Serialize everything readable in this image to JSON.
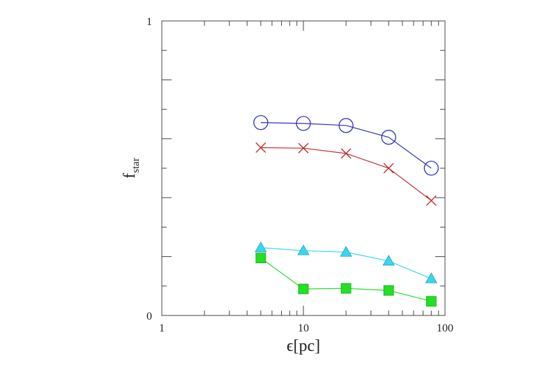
{
  "chart_data": {
    "type": "line",
    "xscale": "log",
    "xlim": [
      1,
      100
    ],
    "ylim": [
      0,
      1
    ],
    "xlabel": "ϵ[pc]",
    "ylabel": {
      "main": "f",
      "subscript": "star"
    },
    "x_tick_labels": [
      "1",
      "10",
      "100"
    ],
    "y_tick_labels": [
      "0",
      "1"
    ],
    "y_minor_ticks": [
      0.1,
      0.2,
      0.3,
      0.4,
      0.5,
      0.6,
      0.7,
      0.8,
      0.9
    ],
    "x": [
      5,
      10,
      20,
      40,
      80
    ],
    "series": [
      {
        "marker": "open-circle",
        "color": "#3030b8",
        "values": [
          0.655,
          0.652,
          0.645,
          0.605,
          0.5
        ]
      },
      {
        "marker": "cross",
        "color": "#c03030",
        "values": [
          0.57,
          0.568,
          0.55,
          0.5,
          0.39
        ]
      },
      {
        "marker": "filled-triangle",
        "color": "#33d9ef",
        "values": [
          0.23,
          0.22,
          0.215,
          0.185,
          0.125
        ]
      },
      {
        "marker": "filled-square",
        "color": "#22e022",
        "values": [
          0.195,
          0.09,
          0.092,
          0.085,
          0.048
        ]
      }
    ]
  }
}
